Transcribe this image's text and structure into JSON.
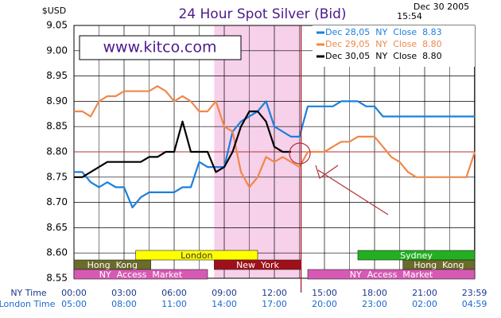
{
  "chart_data": {
    "type": "line",
    "title": "24 Hour Spot Silver (Bid)",
    "y_unit": "$USD",
    "date": "Dec 30 2005",
    "time": "15:54",
    "watermark": "www.kitco.com",
    "x_label_ny": "NY Time",
    "x_label_london": "London Time",
    "x": [
      0,
      0.5,
      1,
      1.5,
      2,
      2.5,
      3,
      3.5,
      4,
      4.5,
      5,
      5.5,
      6,
      6.5,
      7,
      7.5,
      8,
      8.5,
      9,
      9.5,
      10,
      10.5,
      11,
      11.5,
      12,
      12.5,
      13,
      13.5,
      14,
      14.5,
      15,
      15.5,
      16,
      16.5,
      17,
      17.5,
      18,
      18.5,
      19,
      19.5,
      20,
      20.5,
      21,
      21.5,
      22,
      22.5,
      23,
      23.5,
      24
    ],
    "xlim": [
      0,
      24
    ],
    "xticks": [
      {
        "value": 0,
        "label": "00:00"
      },
      {
        "value": 3,
        "label": "03:00"
      },
      {
        "value": 6,
        "label": "06:00"
      },
      {
        "value": 9,
        "label": "09:00"
      },
      {
        "value": 12,
        "label": "12:00"
      },
      {
        "value": 15,
        "label": "15:00"
      },
      {
        "value": 18,
        "label": "18:00"
      },
      {
        "value": 21,
        "label": "21:00"
      },
      {
        "value": 23.98,
        "label": "23:59"
      }
    ],
    "xticks_london": [
      "05:00",
      "08:00",
      "11:00",
      "14:00",
      "17:00",
      "20:00",
      "23:00",
      "02:00",
      "04:59"
    ],
    "xminor": [
      1.5,
      4.5,
      7.5,
      10.5,
      13.5,
      16.5,
      19.5,
      22.5
    ],
    "ylim": [
      8.55,
      9.05
    ],
    "yticks": [
      8.55,
      {
        "value": 8.6,
        "label": "8.60"
      },
      8.65,
      {
        "value": 8.7,
        "label": "8.70"
      },
      8.75,
      {
        "value": 8.8,
        "label": "8.80"
      },
      8.85,
      {
        "value": 8.9,
        "label": "8.90"
      },
      8.95,
      {
        "value": 9,
        "label": "9.00"
      },
      9.05
    ],
    "grid": true,
    "reference_line": 8.8,
    "highlight": [
      8.4,
      13.6
    ],
    "series": [
      {
        "name": "Dec 28,05  NY  Close  8.83",
        "color": "#1a7fe0",
        "values": [
          8.76,
          8.76,
          8.74,
          8.73,
          8.74,
          8.73,
          8.73,
          8.69,
          8.71,
          8.72,
          8.72,
          8.72,
          8.72,
          8.73,
          8.73,
          8.78,
          8.77,
          8.77,
          8.77,
          8.84,
          8.86,
          8.87,
          8.88,
          8.9,
          8.85,
          8.84,
          8.83,
          8.83,
          8.89,
          8.89,
          8.89,
          8.89,
          8.9,
          8.9,
          8.9,
          8.89,
          8.89,
          8.87,
          8.87,
          8.87,
          8.87,
          8.87,
          8.87,
          8.87,
          8.87,
          8.87,
          8.87,
          8.87,
          8.87
        ]
      },
      {
        "name": "Dec 29,05  NY  Close  8.80",
        "color": "#f0884a",
        "values": [
          8.88,
          8.88,
          8.87,
          8.9,
          8.91,
          8.91,
          8.92,
          8.92,
          8.92,
          8.92,
          8.93,
          8.92,
          8.9,
          8.91,
          8.9,
          8.88,
          8.88,
          8.9,
          8.85,
          8.84,
          8.76,
          8.73,
          8.75,
          8.79,
          8.78,
          8.79,
          8.78,
          8.77,
          8.8,
          8.8,
          8.8,
          8.81,
          8.82,
          8.82,
          8.83,
          8.83,
          8.83,
          8.81,
          8.79,
          8.78,
          8.76,
          8.75,
          8.75,
          8.75,
          8.75,
          8.75,
          8.75,
          8.75,
          8.8
        ]
      },
      {
        "name": "Dec 30,05  NY  Close  8.80",
        "color": "#000000",
        "values": [
          8.75,
          8.75,
          8.76,
          8.77,
          8.78,
          8.78,
          8.78,
          8.78,
          8.78,
          8.79,
          8.79,
          8.8,
          8.8,
          8.86,
          8.8,
          8.8,
          8.8,
          8.76,
          8.77,
          8.8,
          8.85,
          8.88,
          8.88,
          8.86,
          8.81,
          8.8,
          8.8,
          null,
          null,
          null,
          null,
          null,
          null,
          null,
          null,
          null,
          null,
          null,
          null,
          null,
          null,
          null,
          null,
          null,
          null,
          null,
          null,
          null,
          null
        ]
      }
    ],
    "sessions": [
      {
        "label": "London",
        "start": 3.7,
        "end": 11.0,
        "row": 0,
        "color": "#ffff00",
        "text_color": "#333333"
      },
      {
        "label": "Sydney",
        "start": 17.0,
        "end": 24,
        "row": 0,
        "color": "#22b022",
        "text_color": "#ffffff"
      },
      {
        "label": "Hong  Kong",
        "start": 0,
        "end": 4.6,
        "row": 1,
        "color": "#6b6b2a",
        "text_color": "#ffffff"
      },
      {
        "label": "New  York",
        "start": 8.4,
        "end": 13.6,
        "row": 1,
        "color": "#a0101a",
        "text_color": "#ffffff"
      },
      {
        "label": "Hong  Kong",
        "start": 19.7,
        "end": 24,
        "row": 1,
        "color": "#6b6b2a",
        "text_color": "#ffffff"
      },
      {
        "label": "NY  Access  Market",
        "start": 0,
        "end": 8.0,
        "row": 2,
        "color": "#d65ab4",
        "text_color": "#ffffff"
      },
      {
        "label": "NY  Access  Market",
        "start": 14.0,
        "end": 24,
        "row": 2,
        "color": "#d65ab4",
        "text_color": "#ffffff"
      }
    ]
  }
}
